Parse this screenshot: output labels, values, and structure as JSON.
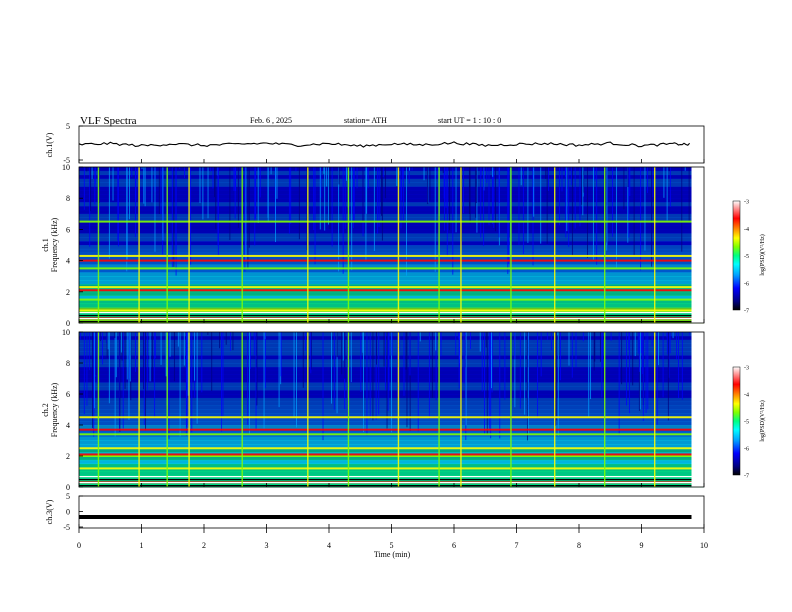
{
  "header": {
    "title": "VLF Spectra",
    "date": "Feb. 6 , 2025",
    "station": "station= ATH",
    "start": "start UT = 1 : 10 : 0"
  },
  "colors": {
    "spectrogram_scale": [
      "#000000",
      "#000080",
      "#0000ff",
      "#00a0ff",
      "#00ffff",
      "#00ff80",
      "#80ff00",
      "#ffff00",
      "#ff8000",
      "#ff0000",
      "#ff8080",
      "#ffffff"
    ],
    "trace": "#000000"
  },
  "chart_data": [
    {
      "type": "line",
      "panel": "ch1-waveform",
      "ylabel": "ch.1(V)",
      "ylim": [
        -5,
        5
      ],
      "yticks": [
        "5",
        "-5"
      ],
      "xlim": [
        0,
        10
      ],
      "series": [
        {
          "x": [
            0,
            0.5,
            1,
            1.5,
            2,
            2.5,
            3,
            3.5,
            4,
            4.5,
            5,
            5.5,
            6,
            6.5,
            7,
            7.5,
            8,
            8.5,
            9,
            9.5,
            9.8
          ],
          "y": [
            0,
            0.3,
            -0.4,
            0.2,
            -0.3,
            0.1,
            0.4,
            -0.2,
            0.3,
            -0.5,
            0.2,
            -0.1,
            0.5,
            -0.3,
            0.1,
            0.3,
            -0.2,
            0.4,
            -0.4,
            0.2,
            0
          ]
        }
      ]
    },
    {
      "type": "heatmap",
      "panel": "ch1-spectrogram",
      "ylabel": "ch.1\nFrequency (kHz)",
      "ylim": [
        0,
        10
      ],
      "yticks": [
        "0",
        "2",
        "4",
        "6",
        "8",
        "10"
      ],
      "xlim": [
        0,
        10
      ],
      "colorbar": {
        "label": "log(PSD)(V²/Hz)",
        "range": [
          -7,
          -3
        ],
        "ticks": [
          "-3",
          "-4",
          "-5",
          "-6",
          "-7"
        ]
      },
      "bands_khz": [
        0.3,
        0.8,
        1.5,
        2.1,
        2.3,
        3.5,
        4.0,
        4.3,
        6.5
      ],
      "sferic_times_min": [
        0.3,
        0.95,
        1.4,
        1.75,
        2.6,
        3.65,
        4.3,
        5.1,
        5.75,
        6.1,
        6.9,
        7.6,
        8.4,
        9.2
      ]
    },
    {
      "type": "heatmap",
      "panel": "ch2-spectrogram",
      "ylabel": "ch.2\nFrequency (kHz)",
      "ylim": [
        0,
        10
      ],
      "yticks": [
        "0",
        "2",
        "4",
        "6",
        "8",
        "10"
      ],
      "xlim": [
        0,
        10
      ],
      "colorbar": {
        "label": "log(PSD)(V²/Hz)",
        "range": [
          -7,
          -3
        ],
        "ticks": [
          "-3",
          "-4",
          "-5",
          "-6",
          "-7"
        ]
      },
      "bands_khz": [
        0.3,
        1.2,
        2.0,
        2.1,
        2.5,
        3.4,
        3.7,
        4.5
      ],
      "sferic_times_min": [
        0.3,
        0.95,
        1.4,
        1.75,
        2.6,
        3.65,
        4.3,
        5.1,
        5.75,
        6.1,
        6.9,
        7.6,
        8.4,
        9.2
      ]
    },
    {
      "type": "line",
      "panel": "ch3-waveform",
      "ylabel": "ch.3(V)",
      "ylim": [
        -5,
        5
      ],
      "yticks": [
        "5",
        "0",
        "-5"
      ],
      "xlim": [
        0,
        10
      ],
      "series": [
        {
          "x": [
            0,
            9.8
          ],
          "y": [
            -1.8,
            -1.8
          ]
        }
      ]
    }
  ],
  "xaxis": {
    "label": "Time (min)",
    "ticks": [
      "0",
      "1",
      "2",
      "3",
      "4",
      "5",
      "6",
      "7",
      "8",
      "9",
      "10"
    ]
  }
}
